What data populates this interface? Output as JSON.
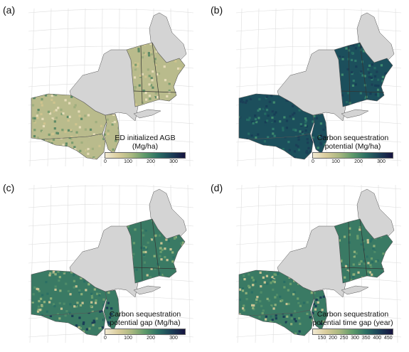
{
  "panels": [
    {
      "label": "(a)",
      "legend_title_lines": [
        "ED initialized AGB",
        "(Mg/ha)"
      ],
      "ticks": [
        "0",
        "100",
        "200",
        "300"
      ],
      "tick_values": [
        0,
        100,
        200,
        300
      ],
      "range": [
        0,
        350
      ]
    },
    {
      "label": "(b)",
      "legend_title_lines": [
        "Carbon sequestration",
        "potential (Mg/ha)"
      ],
      "ticks": [
        "0",
        "100",
        "200",
        "300"
      ],
      "tick_values": [
        0,
        100,
        200,
        300
      ],
      "range": [
        0,
        350
      ]
    },
    {
      "label": "(c)",
      "legend_title_lines": [
        "Carbon sequestration",
        "potential gap (Mg/ha)"
      ],
      "ticks": [
        "0",
        "100",
        "200",
        "300"
      ],
      "tick_values": [
        0,
        100,
        200,
        300
      ],
      "range": [
        0,
        350
      ]
    },
    {
      "label": "(d)",
      "legend_title_lines": [
        "Carbon sequestration",
        "potential time gap (year)"
      ],
      "ticks": [
        "150",
        "200",
        "250",
        "300",
        "350",
        "400",
        "450"
      ],
      "tick_values": [
        150,
        200,
        250,
        300,
        350,
        400,
        450
      ],
      "range": [
        110,
        470
      ]
    }
  ],
  "colors": {
    "scale": [
      "#f2ead2",
      "#d9cc9b",
      "#a9b880",
      "#5d9a6a",
      "#2b6f64",
      "#1b3f57",
      "#15123f"
    ],
    "no_data_gray": "#d4d4d4",
    "border": "#555555"
  }
}
